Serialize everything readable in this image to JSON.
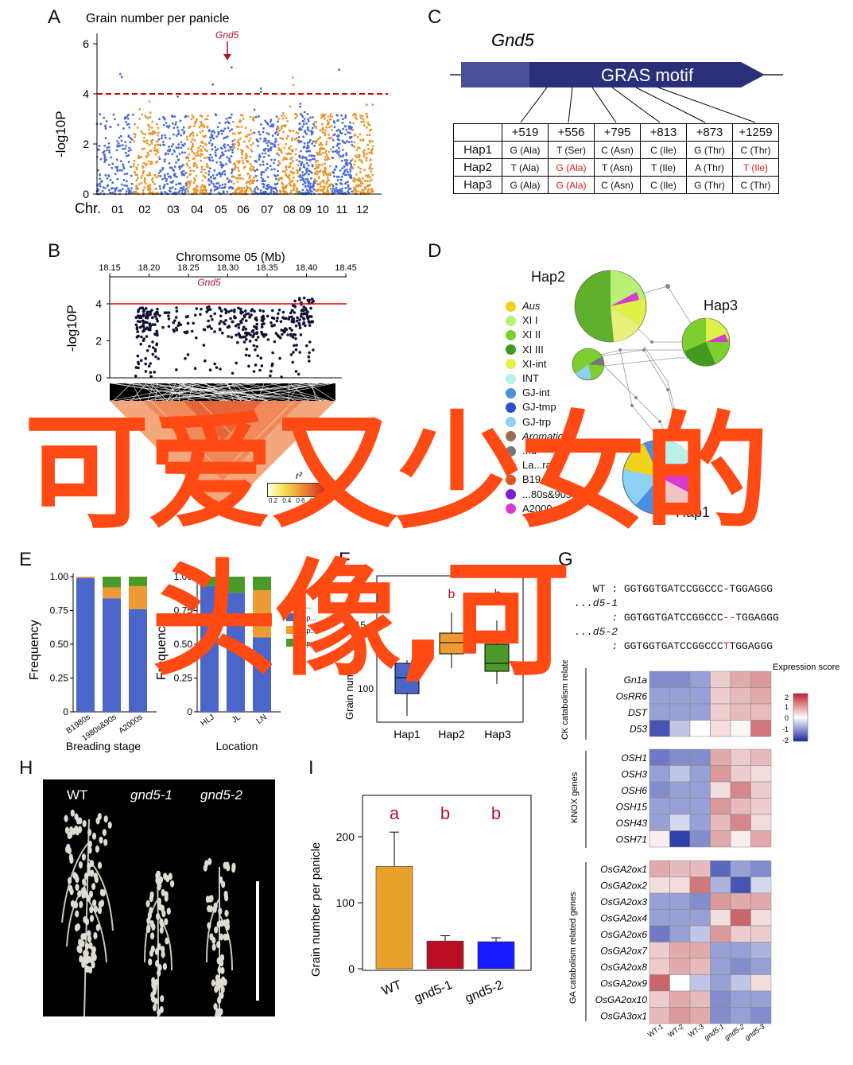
{
  "panels": {
    "A": {
      "letter": "A",
      "title": "Grain number per panicle",
      "gene": "Gnd5",
      "ylabel": "-log10P",
      "yticks": [
        "0",
        "2",
        "4",
        "6"
      ],
      "xprefix": "Chr.",
      "chromosomes": [
        "01",
        "02",
        "03",
        "04",
        "05",
        "06",
        "07",
        "08",
        "09",
        "10",
        "11",
        "12"
      ],
      "threshold": 4,
      "colors": {
        "odd": "#4a6bd6",
        "even": "#e8952b",
        "threshold": "#cc0000"
      }
    },
    "B": {
      "letter": "B",
      "title": "Chromsome 05 (Mb)",
      "gene": "Gnd5",
      "xticks": [
        "18.15",
        "18.20",
        "18.25",
        "18.30",
        "18.35",
        "18.40",
        "18.45"
      ],
      "yticks": [
        "0",
        "2",
        "4"
      ],
      "ylabel": "-log10P",
      "r2_label": "r²",
      "r2_ticks": [
        "0.2",
        "0.4",
        "0.6",
        "0.8",
        "1.0"
      ]
    },
    "C": {
      "letter": "C",
      "gene": "Gnd5",
      "domain": "GRAS  motif",
      "columns": [
        "+519",
        "+556",
        "+795",
        "+813",
        "+873",
        "+1259"
      ],
      "rows": [
        {
          "name": "Hap1",
          "cells": [
            "G (Ala)",
            "T (Ser)",
            "C (Asn)",
            "C (Ile)",
            "G (Thr)",
            "C (Thr)"
          ],
          "red": [
            false,
            false,
            false,
            false,
            false,
            false
          ]
        },
        {
          "name": "Hap2",
          "cells": [
            "T (Ala)",
            "G (Ala)",
            "T (Asn)",
            "T (Ile)",
            "A (Thr)",
            "T (Ile)"
          ],
          "red": [
            false,
            true,
            false,
            false,
            false,
            true
          ]
        },
        {
          "name": "Hap3",
          "cells": [
            "G (Ala)",
            "G (Ala)",
            "C (Asn)",
            "C (Ile)",
            "G (Thr)",
            "C (Thr)"
          ],
          "red": [
            false,
            true,
            false,
            false,
            false,
            false
          ]
        }
      ]
    },
    "D": {
      "letter": "D",
      "hap_labels": [
        "Hap2",
        "Hap3",
        "Hap1"
      ],
      "legend": [
        {
          "label": "Aus",
          "color": "#f2d31c",
          "italic": true
        },
        {
          "label": "XI I",
          "color": "#b8f075",
          "italic": false
        },
        {
          "label": "XI II",
          "color": "#7dcf2f",
          "italic": false
        },
        {
          "label": "XI III",
          "color": "#3f9a1f",
          "italic": false
        },
        {
          "label": "XI-int",
          "color": "#dff24a",
          "italic": false
        },
        {
          "label": "INT",
          "color": "#b8f2ea",
          "italic": false
        },
        {
          "label": "GJ-int",
          "color": "#4b8fe0",
          "italic": false
        },
        {
          "label": "GJ-tmp",
          "color": "#2a4fc8",
          "italic": false
        },
        {
          "label": "GJ-trp",
          "color": "#8fd0f5",
          "italic": false
        },
        {
          "label": "Aromatic",
          "color": "#9a6b52",
          "italic": true
        },
        {
          "label": "...d",
          "color": "#777777",
          "italic": false
        },
        {
          "label": "La...race",
          "color": "#f2c3c3",
          "italic": false
        },
        {
          "label": "B19...s",
          "color": "#e0542a",
          "italic": false
        },
        {
          "label": "...80s&90s",
          "color": "#7a1fd8",
          "italic": false
        },
        {
          "label": "A2000s",
          "color": "#d83bd0",
          "italic": false
        }
      ]
    },
    "E": {
      "letter": "E",
      "ylabel": "Frequency",
      "yticks": [
        "0",
        "0.25",
        "0.50",
        "0.75",
        "1.00"
      ],
      "left": {
        "xlabel": "Breading stage",
        "categories": [
          "B1980s",
          "1980s&90s",
          "A2000s"
        ]
      },
      "right": {
        "xlabel": "Location",
        "categories": [
          "HLJ",
          "JL",
          "LN"
        ]
      },
      "legend_title": "Haplot...",
      "legend_items": [
        "Hap...",
        "Hap...",
        "Hap..."
      ],
      "colors": [
        "#4a66c8",
        "#ee9a35",
        "#4a9a2a"
      ]
    },
    "F": {
      "letter": "F",
      "ylabel": "Grain num...",
      "yticks": [
        "100",
        "15..."
      ],
      "categories": [
        "Hap1",
        "Hap2",
        "Hap3"
      ],
      "sig": [
        "b",
        "b"
      ]
    },
    "G": {
      "letter": "G",
      "seqs": [
        {
          "name": "WT :",
          "seq": "GGTGGTGATCCGGCCC-TGGAGGG",
          "mut": ""
        },
        {
          "name": "...d5-1 :",
          "seq": "GGTGGTGATCCGGCCC",
          "mut": "--",
          "rest": "TGGAGGG"
        },
        {
          "name": "...d5-2 :",
          "seq": "GGTGGTGATCCGGCCC",
          "mut": "T",
          "rest": "TGGAGGG"
        }
      ],
      "scale_title": "Expression score",
      "scale_ticks": [
        "2",
        "1",
        "0",
        "-1",
        "-2"
      ],
      "group_labels": [
        "CK catabolism related genes",
        "KNOX genes",
        "GA catabolism related genes"
      ],
      "ck_genes": [
        "Gn1a",
        "OsRR6",
        "DST",
        "D53"
      ],
      "knox_genes": [
        "OSH1",
        "OSH3",
        "OSH6",
        "OSH15",
        "OSH43",
        "OSH71"
      ],
      "ga_genes": [
        "OsGA2ox1",
        "OsGA2ox2",
        "OsGA2ox3",
        "OsGA2ox4",
        "OsGA2ox6",
        "OsGA2ox7",
        "OsGA2ox8",
        "OsGA2ox9",
        "OsGA2ox10",
        "OsGA3ox1"
      ],
      "samples": [
        "WT-1",
        "WT-2",
        "WT-3",
        "gnd5-1",
        "gnd5-2",
        "gnd5-3"
      ]
    },
    "H": {
      "letter": "H",
      "labels": [
        "WT",
        "gnd5-1",
        "gnd5-2"
      ]
    },
    "I": {
      "letter": "I",
      "ylabel": "Grain number per panicle",
      "yticks": [
        "0",
        "100",
        "200"
      ],
      "sig": [
        "a",
        "b",
        "b"
      ]
    }
  },
  "overlay": {
    "line1": "可爱又少女的",
    "line2": "头像,可"
  },
  "chart_data": [
    {
      "type": "bar",
      "title": "",
      "xlabel": "",
      "ylabel": "Grain number per panicle",
      "categories": [
        "WT",
        "gnd5-1",
        "gnd5-2"
      ],
      "values": [
        155,
        42,
        41
      ],
      "errors": [
        52,
        8,
        6
      ],
      "colors": [
        "#e8a22c",
        "#b80f24",
        "#1a1aff"
      ],
      "ylim": [
        0,
        240
      ]
    },
    {
      "type": "bar",
      "title": "",
      "xlabel": "Breading stage",
      "ylabel": "Frequency",
      "ylim": [
        0,
        1
      ],
      "categories": [
        "B1980s",
        "1980s&90s",
        "A2000s"
      ],
      "series": [
        {
          "values": [
            0.99,
            0.84,
            0.76
          ]
        },
        {
          "values": [
            0.01,
            0.08,
            0.17
          ]
        },
        {
          "values": [
            0.0,
            0.08,
            0.07
          ]
        }
      ]
    },
    {
      "type": "bar",
      "title": "",
      "xlabel": "Location",
      "ylabel": "Frequency",
      "ylim": [
        0,
        1
      ],
      "categories": [
        "HLJ",
        "JL",
        "LN"
      ],
      "series": [
        {
          "values": [
            0.93,
            0.88,
            0.55
          ]
        },
        {
          "values": [
            0.0,
            0.0,
            0.35
          ]
        },
        {
          "values": [
            0.07,
            0.12,
            0.1
          ]
        }
      ]
    }
  ]
}
